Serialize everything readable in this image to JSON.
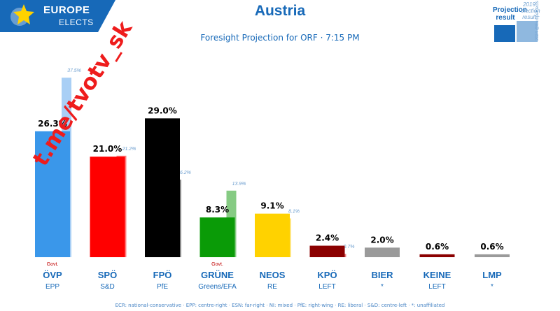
{
  "header": {
    "logo_line1": "EUROPE",
    "logo_line2": "ELECTS",
    "title": "Austria",
    "subtitle": "Foresight Projection for ORF · 7:15 PM"
  },
  "legend": {
    "projection_label": "Projection result",
    "previous_label": "2019 election result",
    "credit": "2024 @EuropeElects"
  },
  "watermark": "t.me/tvotv_sk",
  "footnote": "ECR: national-conservative · EPP: centre-right · ESN: far-right · NI: mixed · PfE: right-wing · RE: liberal · S&D: centre-left · *: unaffiliated",
  "chart_data": {
    "type": "bar",
    "title": "Austria",
    "subtitle": "Foresight Projection for ORF · 7:15 PM",
    "categories": [
      "ÖVP",
      "SPÖ",
      "FPÖ",
      "GRÜNE",
      "NEOS",
      "KPÖ",
      "BIER",
      "KEINE",
      "LMP"
    ],
    "groups": [
      "EPP",
      "S&D",
      "PfE",
      "Greens/EFA",
      "RE",
      "LEFT",
      "*",
      "LEFT",
      "*"
    ],
    "govt": [
      true,
      false,
      false,
      true,
      false,
      false,
      false,
      false,
      false
    ],
    "govt_label": "Govt.",
    "ylim": [
      0,
      40
    ],
    "series": [
      {
        "name": "Projection result",
        "values": [
          26.3,
          21.0,
          29.0,
          8.3,
          9.1,
          2.4,
          2.0,
          0.6,
          0.6
        ],
        "labels": [
          "26.3%",
          "21.0%",
          "29.0%",
          "8.3%",
          "9.1%",
          "2.4%",
          "2.0%",
          "0.6%",
          "0.6%"
        ]
      },
      {
        "name": "2019 election result",
        "values": [
          37.5,
          21.2,
          16.2,
          13.9,
          8.1,
          0.7,
          null,
          null,
          null
        ],
        "labels": [
          "37.5%",
          "21.2%",
          "16.2%",
          "13.9%",
          "8.1%",
          "0.7%",
          null,
          null,
          null
        ]
      }
    ],
    "colors": [
      "#3a97ea",
      "#ff0000",
      "#000000",
      "#0a9b07",
      "#ffd200",
      "#8b0000",
      "#9a9a9a",
      "#8b0000",
      "#9a9a9a"
    ],
    "colors_2019": [
      "#a9cff5",
      "#ff8080",
      "#8a8a8a",
      "#86cb83",
      "#ffe680",
      "#e98080",
      null,
      null,
      null
    ],
    "grid": false
  }
}
